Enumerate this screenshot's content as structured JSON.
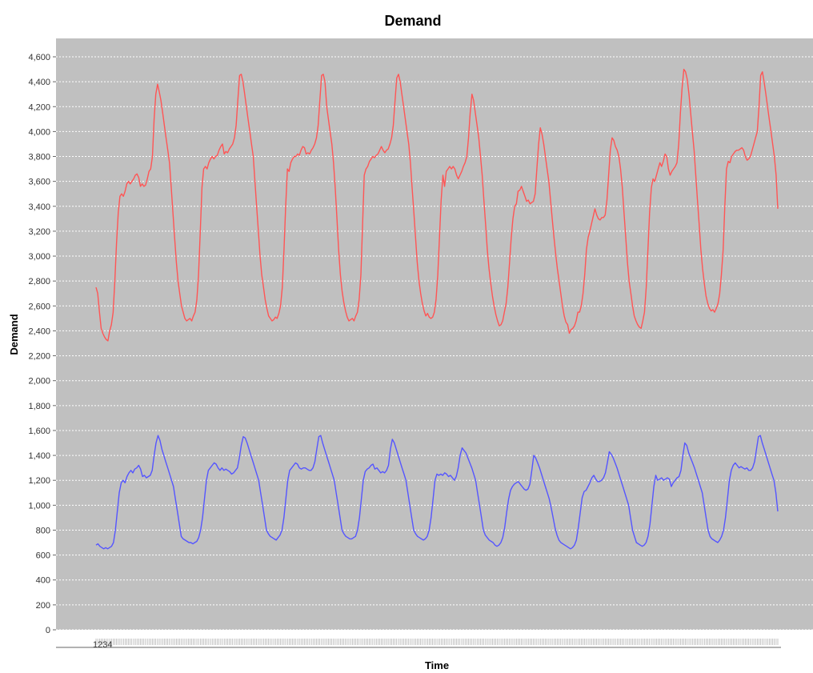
{
  "chart_data": {
    "type": "line",
    "title": "Demand",
    "xlabel": "Time",
    "ylabel": "Demand",
    "ylim": [
      0,
      4700
    ],
    "yticks": [
      0,
      200,
      400,
      600,
      800,
      1000,
      1200,
      1400,
      1600,
      1800,
      2000,
      2200,
      2400,
      2600,
      2800,
      3000,
      3200,
      3400,
      3600,
      3800,
      4000,
      4200,
      4400,
      4600
    ],
    "ytick_labels": [
      "0",
      "200",
      "400",
      "600",
      "800",
      "1,000",
      "1,200",
      "1,400",
      "1,600",
      "1,800",
      "2,000",
      "2,200",
      "2,400",
      "2,600",
      "2,800",
      "3,000",
      "3,200",
      "3,400",
      "3,600",
      "3,800",
      "4,000",
      "4,200",
      "4,400",
      "4,600"
    ],
    "xtick_label": "1234",
    "grid": true,
    "legend": "none",
    "plot_background": "#c0c0c0",
    "series": [
      {
        "color": "#ff5555",
        "values": [
          2750,
          2700,
          2550,
          2420,
          2380,
          2350,
          2330,
          2320,
          2400,
          2450,
          2550,
          2800,
          3100,
          3350,
          3480,
          3500,
          3480,
          3520,
          3580,
          3600,
          3580,
          3600,
          3620,
          3650,
          3660,
          3630,
          3560,
          3580,
          3560,
          3570,
          3620,
          3680,
          3700,
          3800,
          4100,
          4300,
          4380,
          4320,
          4250,
          4150,
          4050,
          3950,
          3850,
          3750,
          3550,
          3350,
          3150,
          2950,
          2800,
          2700,
          2600,
          2550,
          2500,
          2480,
          2490,
          2500,
          2480,
          2520,
          2550,
          2650,
          2850,
          3200,
          3550,
          3700,
          3720,
          3700,
          3750,
          3780,
          3800,
          3780,
          3800,
          3810,
          3850,
          3880,
          3900,
          3820,
          3840,
          3830,
          3860,
          3880,
          3900,
          3950,
          4050,
          4250,
          4450,
          4460,
          4400,
          4300,
          4200,
          4100,
          4000,
          3900,
          3800,
          3600,
          3400,
          3200,
          3000,
          2850,
          2750,
          2650,
          2580,
          2520,
          2500,
          2480,
          2490,
          2510,
          2500,
          2540,
          2600,
          2750,
          3050,
          3400,
          3700,
          3680,
          3750,
          3780,
          3800,
          3800,
          3820,
          3810,
          3850,
          3880,
          3870,
          3820,
          3830,
          3820,
          3850,
          3870,
          3900,
          3950,
          4050,
          4250,
          4450,
          4460,
          4400,
          4200,
          4100,
          4000,
          3900,
          3750,
          3550,
          3300,
          3050,
          2850,
          2720,
          2630,
          2560,
          2510,
          2480,
          2490,
          2500,
          2480,
          2520,
          2550,
          2650,
          2850,
          3250,
          3650,
          3700,
          3720,
          3760,
          3780,
          3800,
          3790,
          3810,
          3820,
          3850,
          3880,
          3850,
          3830,
          3850,
          3860,
          3900,
          3950,
          4050,
          4250,
          4430,
          4460,
          4400,
          4300,
          4200,
          4100,
          4000,
          3900,
          3750,
          3550,
          3350,
          3150,
          2950,
          2800,
          2700,
          2620,
          2560,
          2520,
          2540,
          2510,
          2500,
          2510,
          2550,
          2650,
          2850,
          3150,
          3450,
          3650,
          3560,
          3680,
          3700,
          3720,
          3700,
          3720,
          3700,
          3650,
          3620,
          3650,
          3680,
          3720,
          3750,
          3800,
          3950,
          4150,
          4300,
          4250,
          4150,
          4050,
          3950,
          3800,
          3650,
          3450,
          3250,
          3050,
          2900,
          2780,
          2680,
          2600,
          2530,
          2480,
          2440,
          2450,
          2480,
          2550,
          2620,
          2750,
          2950,
          3150,
          3300,
          3400,
          3420,
          3520,
          3530,
          3560,
          3520,
          3480,
          3440,
          3450,
          3420,
          3430,
          3440,
          3500,
          3700,
          3900,
          4030,
          3980,
          3900,
          3800,
          3700,
          3600,
          3450,
          3300,
          3150,
          3020,
          2900,
          2800,
          2700,
          2600,
          2520,
          2470,
          2450,
          2380,
          2410,
          2420,
          2440,
          2480,
          2550,
          2550,
          2600,
          2700,
          2850,
          3050,
          3150,
          3200,
          3260,
          3320,
          3380,
          3330,
          3300,
          3290,
          3310,
          3310,
          3330,
          3450,
          3650,
          3850,
          3950,
          3930,
          3880,
          3850,
          3800,
          3700,
          3550,
          3350,
          3150,
          2950,
          2800,
          2700,
          2600,
          2520,
          2480,
          2450,
          2430,
          2420,
          2480,
          2550,
          2750,
          3050,
          3350,
          3550,
          3620,
          3600,
          3650,
          3700,
          3750,
          3720,
          3760,
          3820,
          3800,
          3700,
          3650,
          3680,
          3700,
          3720,
          3750,
          3900,
          4150,
          4350,
          4500,
          4480,
          4420,
          4300,
          4150,
          4000,
          3850,
          3650,
          3450,
          3250,
          3050,
          2900,
          2780,
          2680,
          2620,
          2580,
          2560,
          2570,
          2550,
          2580,
          2620,
          2700,
          2850,
          3050,
          3400,
          3700,
          3760,
          3750,
          3800,
          3820,
          3840,
          3850,
          3850,
          3860,
          3870,
          3850,
          3800,
          3770,
          3780,
          3800,
          3850,
          3900,
          3950,
          4000,
          4200,
          4450,
          4480,
          4400,
          4300,
          4200,
          4100,
          4000,
          3900,
          3800,
          3650,
          3380
        ]
      },
      {
        "color": "#5555ff",
        "values": [
          680,
          690,
          670,
          660,
          650,
          660,
          650,
          660,
          670,
          700,
          800,
          950,
          1100,
          1180,
          1200,
          1180,
          1230,
          1260,
          1280,
          1260,
          1290,
          1300,
          1320,
          1290,
          1230,
          1240,
          1220,
          1230,
          1240,
          1280,
          1400,
          1500,
          1560,
          1520,
          1450,
          1400,
          1350,
          1300,
          1250,
          1200,
          1150,
          1050,
          950,
          850,
          750,
          730,
          720,
          710,
          700,
          700,
          690,
          700,
          710,
          740,
          800,
          900,
          1050,
          1200,
          1280,
          1300,
          1320,
          1340,
          1330,
          1300,
          1280,
          1300,
          1280,
          1290,
          1280,
          1270,
          1250,
          1260,
          1280,
          1300,
          1380,
          1480,
          1550,
          1540,
          1500,
          1450,
          1400,
          1350,
          1300,
          1250,
          1200,
          1100,
          1000,
          900,
          800,
          770,
          750,
          740,
          730,
          720,
          740,
          760,
          800,
          900,
          1050,
          1200,
          1280,
          1300,
          1320,
          1340,
          1330,
          1300,
          1290,
          1300,
          1300,
          1290,
          1280,
          1280,
          1300,
          1350,
          1450,
          1550,
          1560,
          1500,
          1450,
          1400,
          1350,
          1300,
          1250,
          1200,
          1100,
          1000,
          900,
          800,
          770,
          750,
          740,
          730,
          730,
          740,
          750,
          800,
          900,
          1050,
          1200,
          1270,
          1290,
          1300,
          1320,
          1330,
          1290,
          1300,
          1280,
          1260,
          1270,
          1260,
          1280,
          1320,
          1450,
          1530,
          1500,
          1450,
          1400,
          1350,
          1300,
          1250,
          1200,
          1100,
          1000,
          900,
          800,
          770,
          750,
          740,
          730,
          720,
          730,
          750,
          800,
          900,
          1050,
          1200,
          1250,
          1240,
          1250,
          1240,
          1260,
          1250,
          1230,
          1240,
          1220,
          1200,
          1230,
          1300,
          1400,
          1460,
          1440,
          1420,
          1380,
          1340,
          1300,
          1250,
          1200,
          1100,
          1000,
          900,
          800,
          760,
          740,
          720,
          710,
          700,
          680,
          670,
          680,
          700,
          740,
          820,
          940,
          1050,
          1120,
          1150,
          1170,
          1180,
          1190,
          1170,
          1150,
          1130,
          1120,
          1130,
          1170,
          1280,
          1400,
          1380,
          1340,
          1300,
          1250,
          1200,
          1150,
          1100,
          1050,
          980,
          900,
          820,
          760,
          720,
          700,
          690,
          680,
          670,
          660,
          650,
          660,
          680,
          720,
          820,
          940,
          1060,
          1110,
          1120,
          1150,
          1180,
          1220,
          1240,
          1210,
          1190,
          1190,
          1200,
          1220,
          1260,
          1340,
          1430,
          1410,
          1380,
          1340,
          1300,
          1250,
          1200,
          1150,
          1100,
          1050,
          1000,
          900,
          800,
          750,
          700,
          690,
          680,
          670,
          680,
          700,
          750,
          850,
          1000,
          1150,
          1240,
          1200,
          1210,
          1220,
          1200,
          1210,
          1220,
          1210,
          1150,
          1180,
          1200,
          1220,
          1230,
          1280,
          1400,
          1500,
          1480,
          1420,
          1380,
          1340,
          1300,
          1250,
          1200,
          1150,
          1100,
          1000,
          900,
          800,
          750,
          730,
          720,
          710,
          700,
          720,
          750,
          800,
          900,
          1050,
          1200,
          1280,
          1320,
          1340,
          1320,
          1300,
          1310,
          1300,
          1290,
          1300,
          1280,
          1280,
          1300,
          1350,
          1450,
          1550,
          1560,
          1500,
          1450,
          1400,
          1350,
          1300,
          1250,
          1200,
          1100,
          950
        ]
      }
    ]
  }
}
